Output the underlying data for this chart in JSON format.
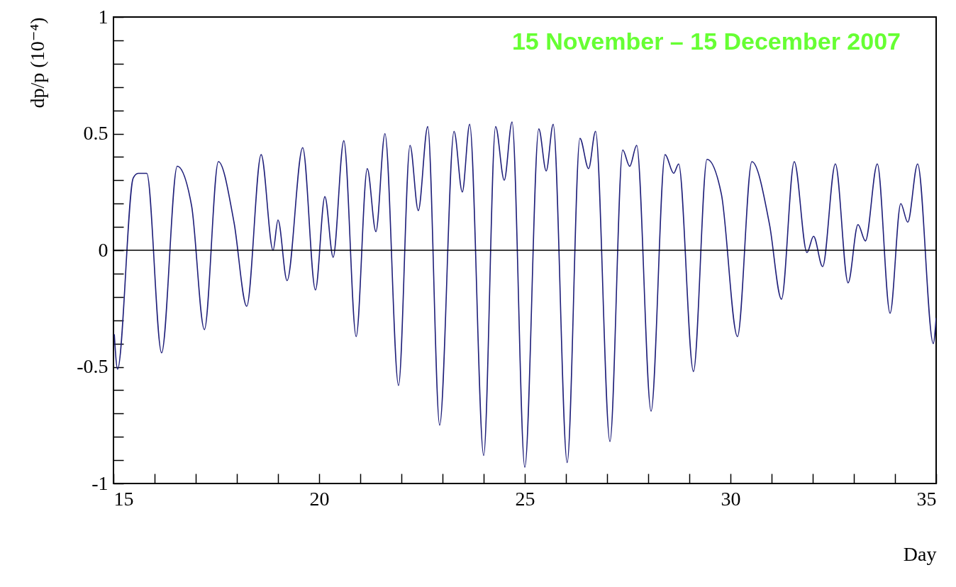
{
  "chart_data": {
    "type": "line",
    "title": "15 November – 15 December 2007",
    "xlabel": "Day",
    "ylabel": "dp/p (10⁻⁴)",
    "xlim": [
      15,
      35
    ],
    "ylim": [
      -1,
      1
    ],
    "xticks": [
      15,
      {
        "value": 16,
        "label": null
      },
      {
        "value": 17,
        "label": null
      },
      {
        "value": 18,
        "label": null
      },
      {
        "value": 19,
        "label": null
      },
      20,
      {
        "value": 21,
        "label": null
      },
      {
        "value": 22,
        "label": null
      },
      {
        "value": 23,
        "label": null
      },
      {
        "value": 24,
        "label": null
      },
      25,
      {
        "value": 26,
        "label": null
      },
      {
        "value": 27,
        "label": null
      },
      {
        "value": 28,
        "label": null
      },
      {
        "value": 29,
        "label": null
      },
      30,
      {
        "value": 31,
        "label": null
      },
      {
        "value": 32,
        "label": null
      },
      {
        "value": 33,
        "label": null
      },
      {
        "value": 34,
        "label": null
      },
      35
    ],
    "yticks": [
      -1,
      {
        "value": -0.9,
        "label": null
      },
      {
        "value": -0.8,
        "label": null
      },
      {
        "value": -0.7,
        "label": null
      },
      {
        "value": -0.6,
        "label": null
      },
      -0.5,
      {
        "value": -0.4,
        "label": null
      },
      {
        "value": -0.3,
        "label": null
      },
      {
        "value": -0.2,
        "label": null
      },
      {
        "value": -0.1,
        "label": null
      },
      0,
      {
        "value": 0.1,
        "label": null
      },
      {
        "value": 0.2,
        "label": null
      },
      {
        "value": 0.3,
        "label": null
      },
      {
        "value": 0.4,
        "label": null
      },
      0.5,
      {
        "value": 0.6,
        "label": null
      },
      {
        "value": 0.7,
        "label": null
      },
      {
        "value": 0.8,
        "label": null
      },
      {
        "value": 0.9,
        "label": null
      },
      1
    ],
    "grid": false,
    "ref_lines": [
      {
        "axis": "y",
        "value": 0,
        "color": "#000000"
      }
    ],
    "series": [
      {
        "color": "#1f1f7a",
        "x": [
          15.02,
          15.1,
          15.48,
          15.6,
          15.81,
          16.17,
          16.55,
          16.9,
          17.21,
          17.55,
          17.93,
          18.24,
          18.59,
          18.88,
          19.0,
          19.22,
          19.6,
          19.91,
          20.14,
          20.34,
          20.6,
          20.9,
          21.17,
          21.38,
          21.6,
          21.93,
          22.21,
          22.41,
          22.64,
          22.93,
          23.28,
          23.48,
          23.66,
          24.0,
          24.29,
          24.5,
          24.69,
          25.0,
          25.34,
          25.52,
          25.69,
          26.03,
          26.34,
          26.55,
          26.72,
          27.07,
          27.38,
          27.55,
          27.72,
          28.07,
          28.41,
          28.62,
          28.74,
          29.1,
          29.43,
          29.78,
          30.17,
          30.52,
          30.95,
          31.24,
          31.55,
          31.86,
          32.02,
          32.24,
          32.55,
          32.86,
          33.1,
          33.28,
          33.57,
          33.88,
          34.14,
          34.31,
          34.55,
          34.93,
          35.0
        ],
        "values": [
          -0.36,
          -0.51,
          0.31,
          0.33,
          0.33,
          -0.44,
          0.36,
          0.19,
          -0.34,
          0.38,
          0.12,
          -0.24,
          0.41,
          0.0,
          0.13,
          -0.13,
          0.44,
          -0.17,
          0.23,
          -0.03,
          0.47,
          -0.37,
          0.35,
          0.08,
          0.5,
          -0.58,
          0.45,
          0.17,
          0.53,
          -0.75,
          0.51,
          0.25,
          0.54,
          -0.88,
          0.53,
          0.3,
          0.55,
          -0.93,
          0.52,
          0.34,
          0.54,
          -0.91,
          0.48,
          0.35,
          0.51,
          -0.82,
          0.43,
          0.36,
          0.45,
          -0.69,
          0.41,
          0.33,
          0.37,
          -0.52,
          0.39,
          0.24,
          -0.37,
          0.38,
          0.11,
          -0.21,
          0.38,
          -0.01,
          0.06,
          -0.07,
          0.37,
          -0.14,
          0.11,
          0.04,
          0.37,
          -0.27,
          0.2,
          0.12,
          0.37,
          -0.4,
          -0.29
        ]
      }
    ]
  }
}
